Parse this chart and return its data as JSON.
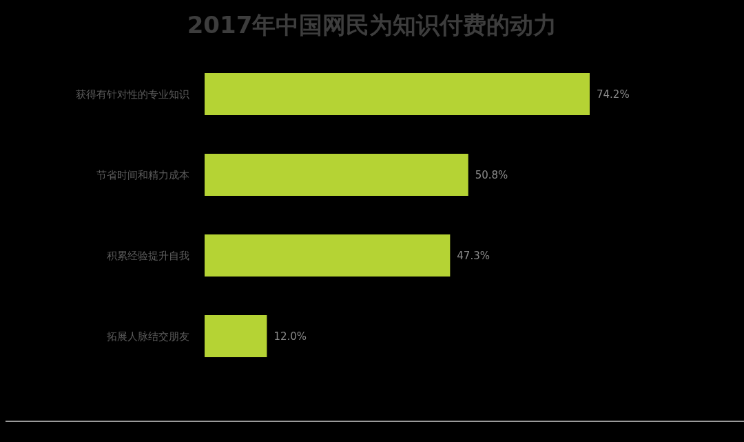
{
  "chart_data": {
    "type": "bar",
    "title": "2017年中国网民为知识付费的动力",
    "orientation": "horizontal",
    "categories": [
      "获得有针对性的专业知识",
      "节省时间和精力成本",
      "积累经验提升自我",
      "拓展人脉结交朋友"
    ],
    "values": [
      74.2,
      50.8,
      47.3,
      12.0
    ],
    "value_labels": [
      "74.2%",
      "50.8%",
      "47.3%",
      "12.0%"
    ],
    "color": "#b5d334"
  }
}
